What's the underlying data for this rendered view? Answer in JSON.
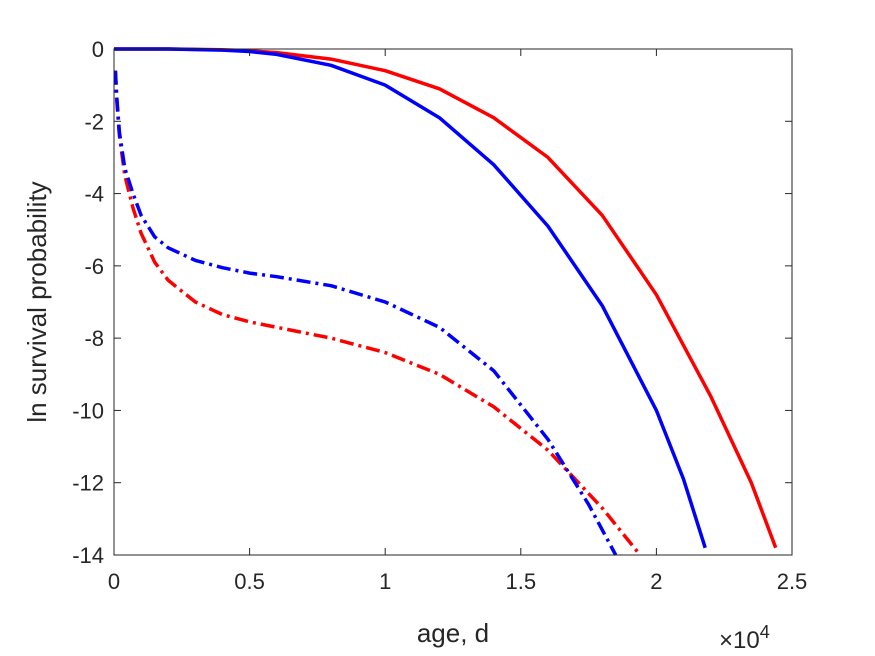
{
  "chart_data": {
    "type": "line",
    "title": "",
    "xlabel": "age, d",
    "ylabel": "ln survival probability",
    "x_exponent_label": {
      "base": "×10",
      "exp": "4"
    },
    "xlim": [
      0,
      2.5
    ],
    "ylim": [
      -14,
      0
    ],
    "xticks": [
      0,
      0.5,
      1,
      1.5,
      2,
      2.5
    ],
    "xtick_labels": [
      "0",
      "0.5",
      "1",
      "1.5",
      "2",
      "2.5"
    ],
    "yticks": [
      0,
      -2,
      -4,
      -6,
      -8,
      -10,
      -12,
      -14
    ],
    "ytick_labels": [
      "0",
      "-2",
      "-4",
      "-6",
      "-8",
      "-10",
      "-12",
      "-14"
    ],
    "grid": false,
    "legend": "none",
    "x_scale_note": "x values in units of 10^4 days",
    "series": [
      {
        "color": "#ff0000",
        "style": "solid",
        "x": [
          0,
          0.2,
          0.4,
          0.5,
          0.6,
          0.8,
          1.0,
          1.2,
          1.4,
          1.6,
          1.8,
          2.0,
          2.2,
          2.35,
          2.44
        ],
        "y": [
          0,
          0,
          -0.02,
          -0.05,
          -0.1,
          -0.28,
          -0.6,
          -1.1,
          -1.9,
          -3.0,
          -4.6,
          -6.8,
          -9.6,
          -12.0,
          -13.8
        ]
      },
      {
        "color": "#0000ff",
        "style": "solid",
        "x": [
          0,
          0.2,
          0.4,
          0.5,
          0.6,
          0.8,
          1.0,
          1.2,
          1.4,
          1.6,
          1.8,
          2.0,
          2.1,
          2.18
        ],
        "y": [
          0,
          0,
          -0.03,
          -0.07,
          -0.15,
          -0.45,
          -1.0,
          -1.9,
          -3.2,
          -4.9,
          -7.1,
          -10.0,
          -11.9,
          -13.8
        ]
      },
      {
        "color": "#ff0000",
        "style": "dashdot",
        "x": [
          0.005,
          0.01,
          0.02,
          0.04,
          0.07,
          0.1,
          0.15,
          0.2,
          0.3,
          0.4,
          0.5,
          0.6,
          0.8,
          1.0,
          1.2,
          1.4,
          1.6,
          1.8,
          1.94
        ],
        "y": [
          -0.6,
          -1.4,
          -2.4,
          -3.5,
          -4.4,
          -5.1,
          -5.9,
          -6.4,
          -7.0,
          -7.35,
          -7.55,
          -7.7,
          -8.0,
          -8.4,
          -9.0,
          -9.9,
          -11.1,
          -12.7,
          -14.0
        ]
      },
      {
        "color": "#0000ff",
        "style": "dashdot",
        "x": [
          0.005,
          0.01,
          0.02,
          0.04,
          0.07,
          0.1,
          0.15,
          0.2,
          0.3,
          0.4,
          0.5,
          0.6,
          0.8,
          1.0,
          1.2,
          1.4,
          1.6,
          1.75,
          1.85
        ],
        "y": [
          -0.6,
          -1.3,
          -2.3,
          -3.3,
          -4.0,
          -4.6,
          -5.2,
          -5.5,
          -5.85,
          -6.05,
          -6.2,
          -6.3,
          -6.55,
          -7.0,
          -7.7,
          -8.9,
          -10.8,
          -12.6,
          -14.0
        ]
      }
    ]
  }
}
